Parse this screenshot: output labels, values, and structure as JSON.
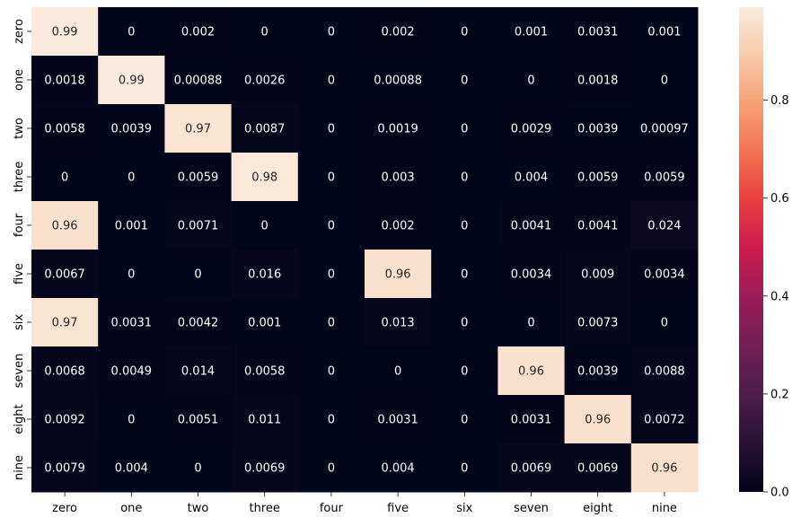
{
  "chart_data": {
    "type": "heatmap",
    "title": "",
    "xlabel": "",
    "ylabel": "",
    "x_categories": [
      "zero",
      "one",
      "two",
      "three",
      "four",
      "five",
      "six",
      "seven",
      "eight",
      "nine"
    ],
    "y_categories": [
      "zero",
      "one",
      "two",
      "three",
      "four",
      "five",
      "six",
      "seven",
      "eight",
      "nine"
    ],
    "values": [
      [
        0.99,
        0,
        0.002,
        0,
        0,
        0.002,
        0,
        0.001,
        0.0031,
        0.001
      ],
      [
        0.0018,
        0.99,
        0.00088,
        0.0026,
        0,
        0.00088,
        0,
        0,
        0.0018,
        0
      ],
      [
        0.0058,
        0.0039,
        0.97,
        0.0087,
        0,
        0.0019,
        0,
        0.0029,
        0.0039,
        0.00097
      ],
      [
        0,
        0,
        0.0059,
        0.98,
        0,
        0.003,
        0,
        0.004,
        0.0059,
        0.0059
      ],
      [
        0.96,
        0.001,
        0.0071,
        0,
        0,
        0.002,
        0,
        0.0041,
        0.0041,
        0.024
      ],
      [
        0.0067,
        0,
        0,
        0.016,
        0,
        0.96,
        0,
        0.0034,
        0.009,
        0.0034
      ],
      [
        0.97,
        0.0031,
        0.0042,
        0.001,
        0,
        0.013,
        0,
        0,
        0.0073,
        0
      ],
      [
        0.0068,
        0.0049,
        0.014,
        0.0058,
        0,
        0,
        0,
        0.96,
        0.0039,
        0.0088
      ],
      [
        0.0092,
        0,
        0.0051,
        0.011,
        0,
        0.0031,
        0,
        0.0031,
        0.96,
        0.0072
      ],
      [
        0.0079,
        0.004,
        0,
        0.0069,
        0,
        0.004,
        0,
        0.0069,
        0.0069,
        0.96
      ]
    ],
    "colorbar": {
      "min": 0,
      "max": 0.99,
      "ticks": [
        0.0,
        0.2,
        0.4,
        0.6,
        0.8
      ],
      "tick_labels": [
        "0.0",
        "0.2",
        "0.4",
        "0.6",
        "0.8"
      ]
    },
    "colormap": "rocket",
    "colors": {
      "low": "#03051a",
      "high": "#faebdd"
    }
  }
}
